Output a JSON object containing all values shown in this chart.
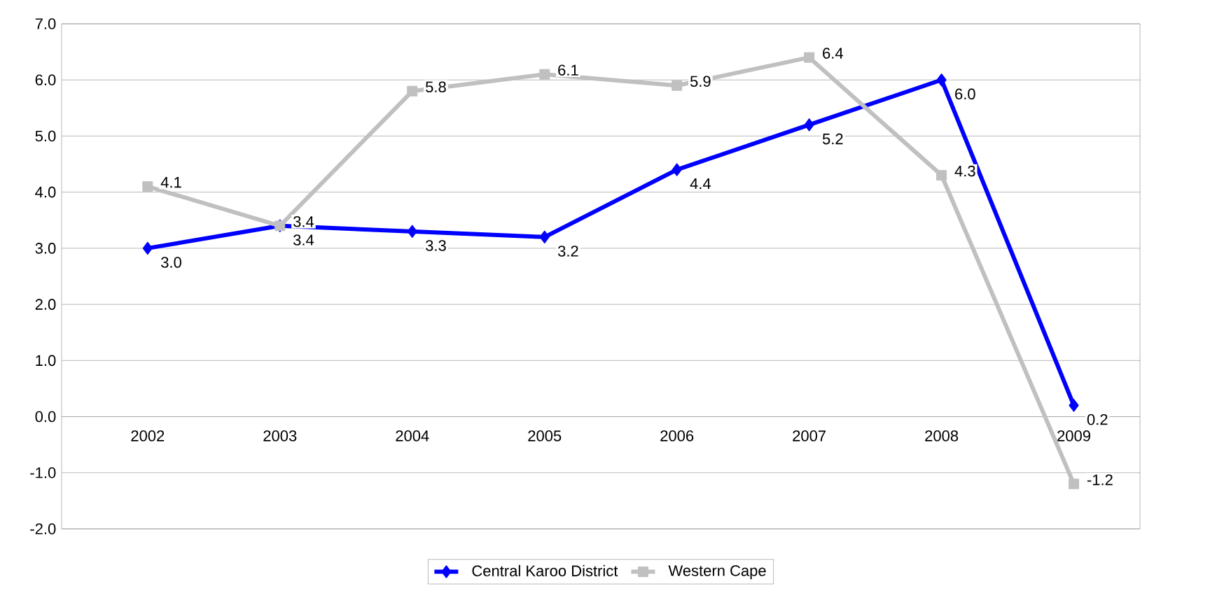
{
  "chart_data": {
    "type": "line",
    "categories": [
      "2002",
      "2003",
      "2004",
      "2005",
      "2006",
      "2007",
      "2008",
      "2009"
    ],
    "series": [
      {
        "name": "Central Karoo District",
        "color": "#0000ff",
        "marker": "diamond",
        "values": [
          3.0,
          3.4,
          3.3,
          3.2,
          4.4,
          5.2,
          6.0,
          0.2
        ],
        "value_labels": [
          "3.0",
          "3.4",
          "3.3",
          "3.2",
          "4.4",
          "5.2",
          "6.0",
          "0.2"
        ]
      },
      {
        "name": "Western Cape",
        "color": "#c0c0c0",
        "marker": "square",
        "values": [
          4.1,
          3.4,
          5.8,
          6.1,
          5.9,
          6.4,
          4.3,
          -1.2
        ],
        "value_labels": [
          "4.1",
          "3.4",
          "5.8",
          "6.1",
          "5.9",
          "6.4",
          "4.3",
          "-1.2"
        ]
      }
    ],
    "ylim": [
      -2,
      7
    ],
    "yticks": [
      {
        "value": -2,
        "label": "-2.0"
      },
      {
        "value": -1,
        "label": "-1.0"
      },
      {
        "value": 0,
        "label": "0.0"
      },
      {
        "value": 1,
        "label": "1.0"
      },
      {
        "value": 2,
        "label": "2.0"
      },
      {
        "value": 3,
        "label": "3.0"
      },
      {
        "value": 4,
        "label": "4.0"
      },
      {
        "value": 5,
        "label": "5.0"
      },
      {
        "value": 6,
        "label": "6.0"
      },
      {
        "value": 7,
        "label": "7.0"
      }
    ],
    "grid": "y",
    "legend": "bottom"
  }
}
